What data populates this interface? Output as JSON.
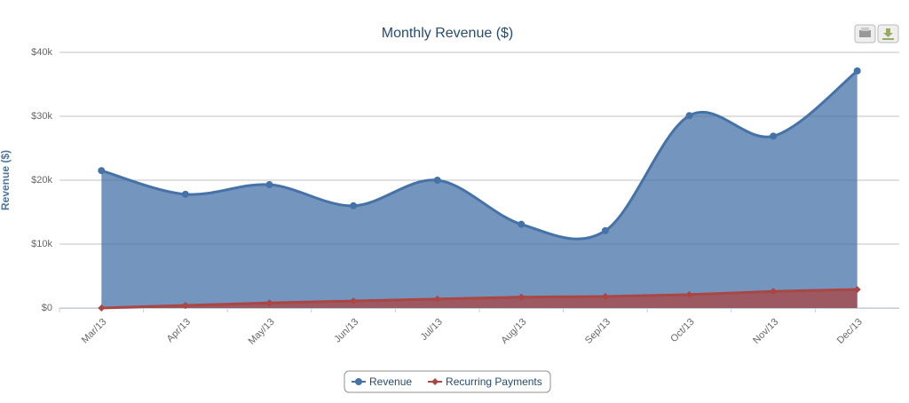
{
  "chart_data": {
    "type": "areaspline",
    "title": "Monthly Revenue ($)",
    "y_axis_label": "Revenue ($)",
    "categories": [
      "Mar/13",
      "Apr/13",
      "May/13",
      "Jun/13",
      "Jul/13",
      "Aug/13",
      "Sep/13",
      "Oct/13",
      "Nov/13",
      "Dec/13"
    ],
    "series": [
      {
        "name": "Revenue",
        "color": "#4572a7",
        "marker": "circle",
        "values": [
          21500,
          17800,
          19300,
          16000,
          20000,
          13100,
          12100,
          30100,
          26900,
          37100
        ]
      },
      {
        "name": "Recurring Payments",
        "color": "#aa4643",
        "marker": "diamond",
        "values": [
          0,
          400,
          800,
          1100,
          1400,
          1700,
          1800,
          2100,
          2600,
          2900
        ]
      }
    ],
    "ylim": [
      0,
      40000
    ],
    "yticks": [
      {
        "value": 0,
        "label": "$0"
      },
      {
        "value": 10000,
        "label": "$10k"
      },
      {
        "value": 20000,
        "label": "$20k"
      },
      {
        "value": 30000,
        "label": "$30k"
      },
      {
        "value": 40000,
        "label": "$40k"
      }
    ],
    "grid": true,
    "legend": "bottom"
  }
}
